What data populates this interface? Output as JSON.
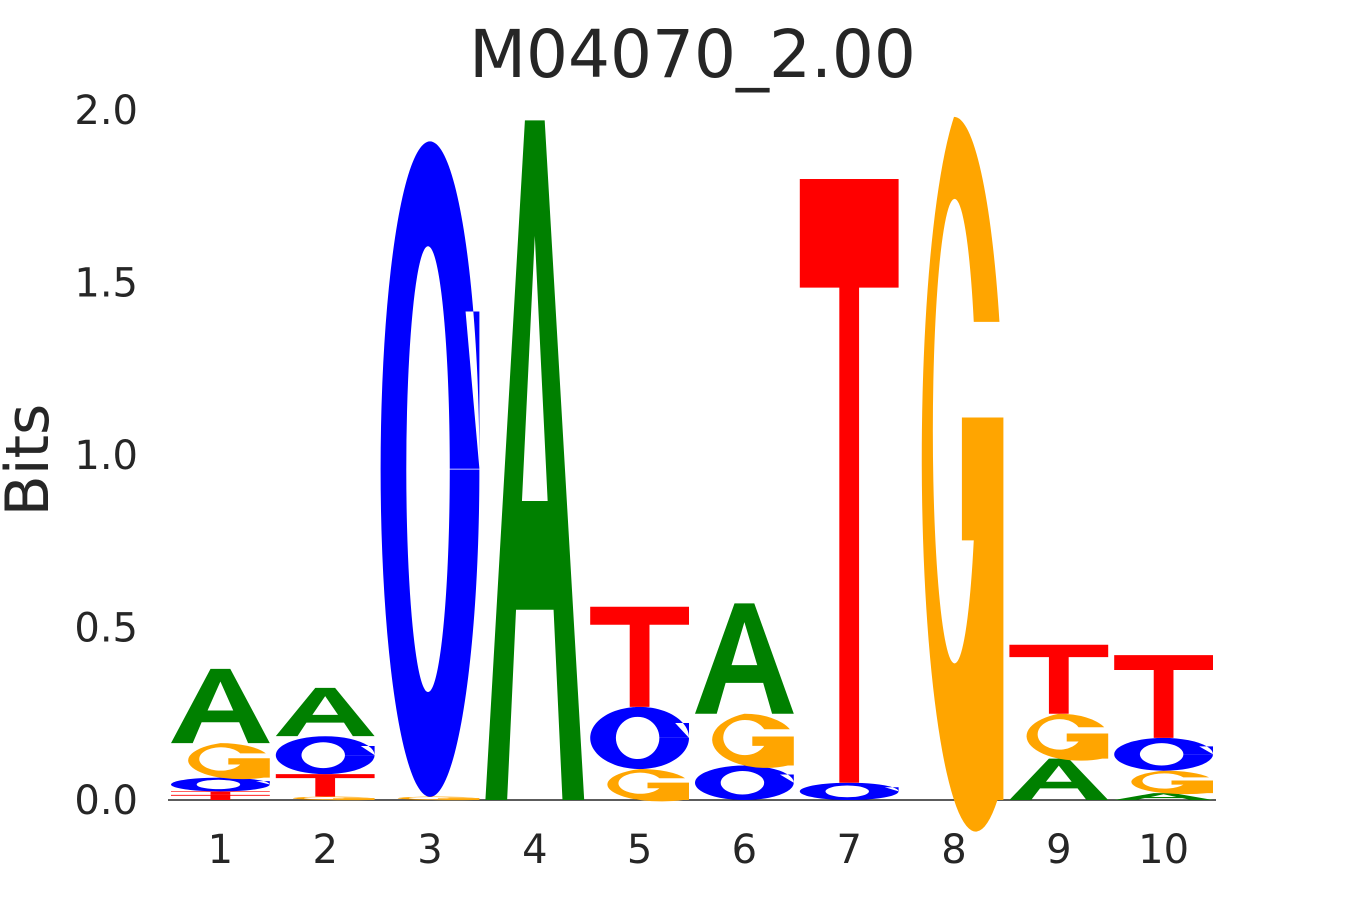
{
  "chart_data": {
    "type": "sequence-logo",
    "title": "M04070_2.00",
    "ylabel": "Bits",
    "xlabel": "",
    "ylim": [
      0,
      2.0
    ],
    "yticks": [
      "0.0",
      "0.5",
      "1.0",
      "1.5",
      "2.0"
    ],
    "grid": false,
    "legend": "none",
    "colors": {
      "A": "#008000",
      "C": "#0000ff",
      "G": "#ffa500",
      "T": "#ff0000"
    },
    "positions": [
      {
        "label": "1",
        "letters": [
          {
            "base": "T",
            "bits": 0.015
          },
          {
            "base": "T",
            "bits": 0.01
          },
          {
            "base": "C",
            "bits": 0.04
          },
          {
            "base": "G",
            "bits": 0.1
          },
          {
            "base": "A",
            "bits": 0.215
          }
        ]
      },
      {
        "label": "2",
        "letters": [
          {
            "base": "G",
            "bits": 0.01
          },
          {
            "base": "T",
            "bits": 0.065
          },
          {
            "base": "C",
            "bits": 0.11
          },
          {
            "base": "A",
            "bits": 0.14
          }
        ]
      },
      {
        "label": "3",
        "letters": [
          {
            "base": "G",
            "bits": 0.01
          },
          {
            "base": "C",
            "bits": 1.9
          }
        ]
      },
      {
        "label": "4",
        "letters": [
          {
            "base": "A",
            "bits": 1.97
          }
        ]
      },
      {
        "label": "5",
        "letters": [
          {
            "base": "G",
            "bits": 0.09
          },
          {
            "base": "C",
            "bits": 0.18
          },
          {
            "base": "T",
            "bits": 0.29
          }
        ]
      },
      {
        "label": "6",
        "letters": [
          {
            "base": "C",
            "bits": 0.1
          },
          {
            "base": "G",
            "bits": 0.15
          },
          {
            "base": "A",
            "bits": 0.32
          }
        ]
      },
      {
        "label": "7",
        "letters": [
          {
            "base": "C",
            "bits": 0.05
          },
          {
            "base": "T",
            "bits": 1.75
          }
        ]
      },
      {
        "label": "8",
        "letters": [
          {
            "base": "G",
            "bits": 1.98
          }
        ]
      },
      {
        "label": "9",
        "letters": [
          {
            "base": "A",
            "bits": 0.12
          },
          {
            "base": "G",
            "bits": 0.13
          },
          {
            "base": "T",
            "bits": 0.2
          }
        ]
      },
      {
        "label": "10",
        "letters": [
          {
            "base": "A",
            "bits": 0.02
          },
          {
            "base": "G",
            "bits": 0.065
          },
          {
            "base": "C",
            "bits": 0.095
          },
          {
            "base": "T",
            "bits": 0.24
          }
        ]
      }
    ]
  }
}
